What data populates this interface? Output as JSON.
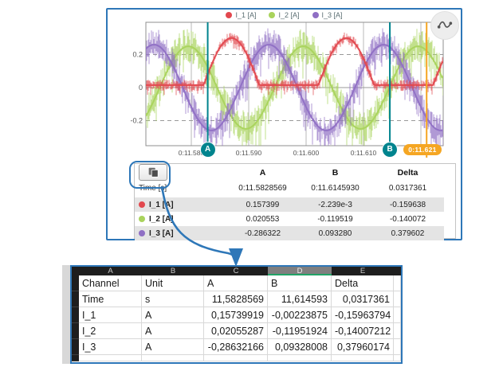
{
  "chart_panel": {
    "legend": [
      {
        "label": "I_1 [A]",
        "color": "#e2484e"
      },
      {
        "label": "I_2 [A]",
        "color": "#a9d35c"
      },
      {
        "label": "I_3 [A]",
        "color": "#8f6fc4"
      }
    ],
    "y_ticks": [
      "0.2",
      "0",
      "-0.2"
    ],
    "x_ticks": [
      "0:11.580",
      "0:11.590",
      "0:11.600",
      "0:11.610"
    ],
    "cursor_a_label": "A",
    "cursor_b_label": "B",
    "time_marker_label": "0:11.621"
  },
  "chart_data": {
    "type": "line",
    "title": "",
    "xlabel": "Time [s]",
    "x_range_s": [
      11.572,
      11.624
    ],
    "ylim": [
      -0.36,
      0.39
    ],
    "x_tick_values_s": [
      11.58,
      11.59,
      11.6,
      11.61
    ],
    "y_tick_values": [
      0.2,
      0,
      -0.2
    ],
    "grid": true,
    "legend_position": "top",
    "series": [
      {
        "name": "I_1 [A]",
        "color": "#e2484e",
        "model": "half_rectified_sine",
        "amplitude": 0.3,
        "period_s": 0.02,
        "peak_time_s": 11.587,
        "baseline": 0.015,
        "noise": 0.035
      },
      {
        "name": "I_2 [A]",
        "color": "#a9d35c",
        "model": "sine",
        "amplitude": 0.25,
        "period_s": 0.02,
        "peak_time_s": 11.5795,
        "baseline": null,
        "noise": 0.11
      },
      {
        "name": "I_3 [A]",
        "color": "#8f6fc4",
        "model": "sine",
        "amplitude": 0.26,
        "period_s": 0.02,
        "peak_time_s": 11.5735,
        "baseline": null,
        "noise": 0.1
      }
    ],
    "cursors": [
      {
        "name": "A",
        "time_s": 11.5828569,
        "color": "#00848e"
      },
      {
        "name": "B",
        "time_s": 11.614593,
        "color": "#00848e"
      },
      {
        "name": "marker",
        "time_s": 11.621,
        "color": "#f5a623"
      }
    ],
    "cursor_readout": [
      {
        "channel": "I_1 [A]",
        "A": 0.157399,
        "B": -0.002239,
        "Delta": -0.159638
      },
      {
        "channel": "I_2 [A]",
        "A": 0.020553,
        "B": -0.119519,
        "Delta": -0.140072
      },
      {
        "channel": "I_3 [A]",
        "A": -0.286322,
        "B": 0.09328,
        "Delta": 0.379602
      }
    ]
  },
  "cursor_table": {
    "columns": [
      "A",
      "B",
      "Delta"
    ],
    "time_row": {
      "label": "Time [s]",
      "values": [
        "0:11.5828569",
        "0:11.6145930",
        "0.0317361"
      ]
    },
    "channel_rows": [
      {
        "label": "I_1 [A]",
        "color": "#e2484e",
        "values": [
          "0.157399",
          "-2.239e-3",
          "-0.159638"
        ]
      },
      {
        "label": "I_2 [A]",
        "color": "#a9d35c",
        "values": [
          "0.020553",
          "-0.119519",
          "-0.140072"
        ]
      },
      {
        "label": "I_3 [A]",
        "color": "#8f6fc4",
        "values": [
          "-0.286322",
          "0.093280",
          "0.379602"
        ]
      }
    ]
  },
  "spreadsheet": {
    "column_letters": [
      "A",
      "B",
      "C",
      "D",
      "E"
    ],
    "selected_column_letter": "D",
    "header_row": [
      "Channel",
      "Unit",
      "A",
      "B",
      "Delta"
    ],
    "rows": [
      [
        "Time",
        "s",
        "11,5828569",
        "11,614593",
        "0,0317361"
      ],
      [
        "I_1",
        "A",
        "0,15739919",
        "-0,00223875",
        "-0,15963794"
      ],
      [
        "I_2",
        "A",
        "0,02055287",
        "-0,11951924",
        "-0,14007212"
      ],
      [
        "I_3",
        "A",
        "-0,28632166",
        "0,09328008",
        "0,37960174"
      ]
    ]
  },
  "colors": {
    "panel_border": "#2e77b8",
    "arrow": "#2e77b8",
    "cursor_teal": "#00848e",
    "marker_orange": "#f5a623",
    "table_stripe": "#e4e4e4",
    "sheet_header_bg": "#1e1e1e",
    "sheet_selected_header_bg": "#7f7f7f",
    "sheet_selected_underline": "#21a366"
  }
}
